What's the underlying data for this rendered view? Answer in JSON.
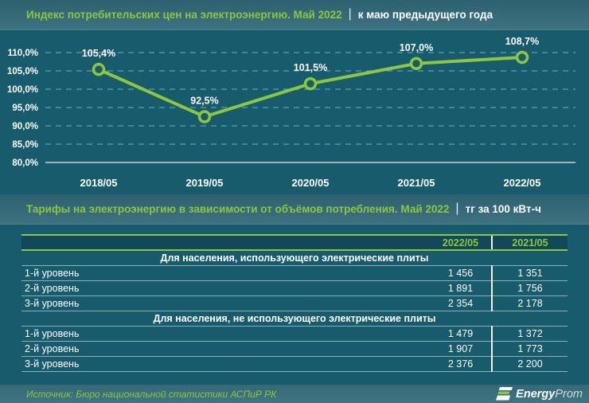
{
  "header1": {
    "title": "Индекс потребительских цен на электроэнергию. Май 2022",
    "separator": "|",
    "subtitle": "к маю предыдущего года"
  },
  "chart_data": {
    "type": "line",
    "categories": [
      "2018/05",
      "2019/05",
      "2020/05",
      "2021/05",
      "2022/05"
    ],
    "values": [
      105.4,
      92.5,
      101.5,
      107.0,
      108.7
    ],
    "point_labels": [
      "105,4%",
      "92,5%",
      "101,5%",
      "107,0%",
      "108,7%"
    ],
    "ylim": [
      80,
      110
    ],
    "yticks": [
      110,
      105,
      100,
      95,
      90,
      85,
      80
    ],
    "ytick_labels": [
      "110,0%",
      "105,0%",
      "100,0%",
      "95,0%",
      "90,0%",
      "85,0%",
      "80,0%"
    ],
    "grid": true,
    "legend": "none",
    "title": "",
    "xlabel": "",
    "ylabel": ""
  },
  "header2": {
    "title": "Тарифы на электроэнергию в зависимости от объёмов потребления. Май 2022",
    "separator": "|",
    "subtitle": "тг за 100 кВт-ч"
  },
  "table": {
    "columns": [
      "2022/05",
      "2021/05"
    ],
    "sections": [
      {
        "title": "Для населения, использующего электрические плиты",
        "rows": [
          {
            "label": "1-й уровень",
            "values": [
              "1 456",
              "1 351"
            ]
          },
          {
            "label": "2-й уровень",
            "values": [
              "1 891",
              "1 756"
            ]
          },
          {
            "label": "3-й уровень",
            "values": [
              "2 354",
              "2 178"
            ]
          }
        ]
      },
      {
        "title": "Для населения, не использующего электрические плиты",
        "rows": [
          {
            "label": "1-й уровень",
            "values": [
              "1 479",
              "1 372"
            ]
          },
          {
            "label": "2-й уровень",
            "values": [
              "1 907",
              "1 773"
            ]
          },
          {
            "label": "3-й уровень",
            "values": [
              "2 376",
              "2 200"
            ]
          }
        ]
      }
    ]
  },
  "footer": {
    "source": "Источник: Бюро национальной статистики АСПиР РК",
    "logo": {
      "bold": "Energy",
      "light": "Prom"
    }
  },
  "colors": {
    "accent_green": "#8dc63f",
    "page_bg": "#175b6c",
    "grid_dash": "#4c96aa",
    "baseline_gray": "#a7b0b3",
    "text_white": "#ffffff"
  }
}
